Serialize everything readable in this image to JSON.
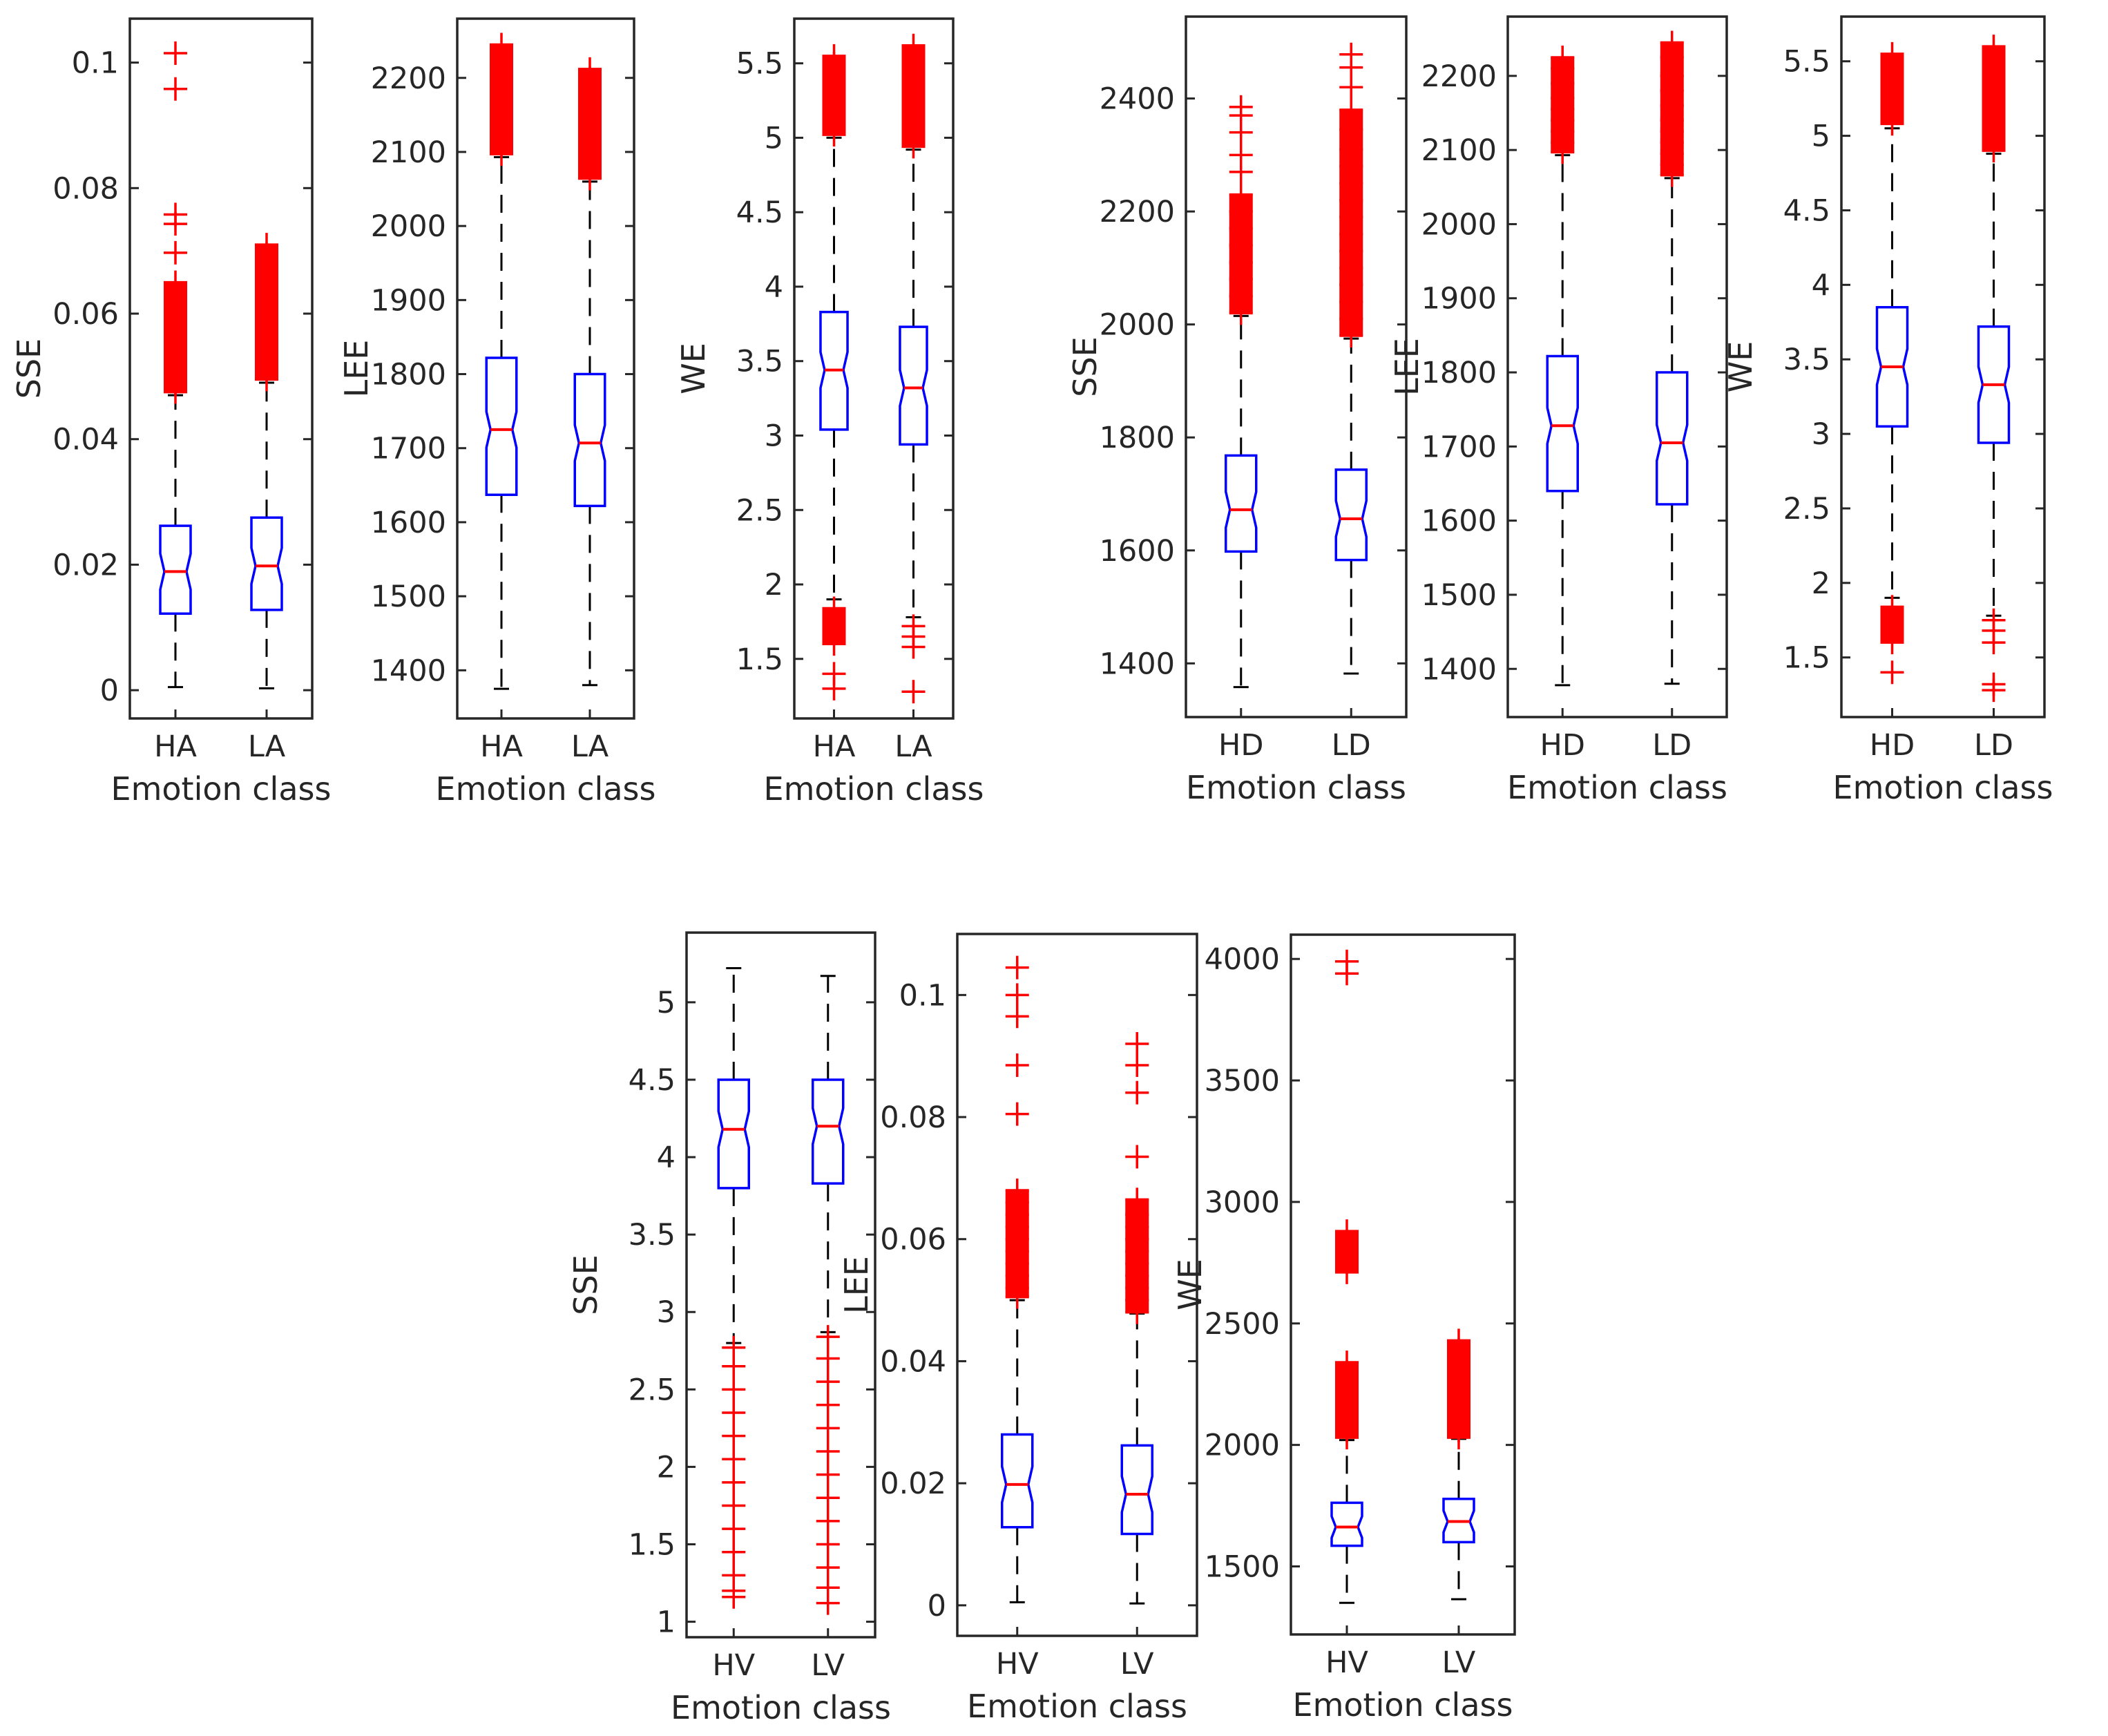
{
  "colors": {
    "box": "#0000ff",
    "median": "#ff0000",
    "outlier": "#ff0000",
    "whisker": "#000000",
    "axis": "#262626"
  },
  "chart_data": [
    {
      "type": "box",
      "ylabel": "SSE",
      "xlabel": "Emotion class",
      "categories": [
        "HA",
        "LA"
      ],
      "yticks": [
        0,
        0.02,
        0.04,
        0.06,
        0.08,
        0.1
      ],
      "ytick_labels": [
        "0",
        "0.02",
        "0.04",
        "0.06",
        "0.08",
        "0.1"
      ],
      "ylim": [
        -0.0045,
        0.107
      ],
      "boxes": [
        {
          "min": 0.0005,
          "q1": 0.0122,
          "median": 0.0189,
          "q3": 0.0262,
          "max": 0.047,
          "outliers_high": [
            0.0475,
            0.049,
            0.051,
            0.053,
            0.055,
            0.057,
            0.059,
            0.061,
            0.063,
            0.065,
            0.0697,
            0.0743,
            0.0758,
            0.0958,
            0.1015
          ],
          "outliers_low": []
        },
        {
          "min": 0.0003,
          "q1": 0.0128,
          "median": 0.0198,
          "q3": 0.0275,
          "max": 0.049,
          "outliers_high": [
            0.0495,
            0.051,
            0.053,
            0.055,
            0.057,
            0.059,
            0.061,
            0.063,
            0.065,
            0.0675,
            0.0695,
            0.071
          ],
          "outliers_low": []
        }
      ]
    },
    {
      "type": "box",
      "ylabel": "LEE",
      "xlabel": "Emotion class",
      "categories": [
        "HA",
        "LA"
      ],
      "yticks": [
        1400,
        1500,
        1600,
        1700,
        1800,
        1900,
        2000,
        2100,
        2200
      ],
      "ytick_labels": [
        "1400",
        "1500",
        "1600",
        "1700",
        "1800",
        "1900",
        "2000",
        "2100",
        "2200"
      ],
      "ylim": [
        1335,
        2280
      ],
      "boxes": [
        {
          "min": 1375,
          "q1": 1637,
          "median": 1725,
          "q3": 1822,
          "max": 2093,
          "outliers_high": [
            2097,
            2110,
            2125,
            2140,
            2155,
            2170,
            2185,
            2200,
            2222,
            2245
          ],
          "outliers_low": []
        },
        {
          "min": 1380,
          "q1": 1622,
          "median": 1707,
          "q3": 1800,
          "max": 2060,
          "outliers_high": [
            2064,
            2080,
            2095,
            2110,
            2125,
            2140,
            2155,
            2170,
            2185,
            2200,
            2212
          ],
          "outliers_low": []
        }
      ]
    },
    {
      "type": "box",
      "ylabel": "WE",
      "xlabel": "Emotion class",
      "categories": [
        "HA",
        "LA"
      ],
      "yticks": [
        1.5,
        2,
        2.5,
        3,
        3.5,
        4,
        4.5,
        5,
        5.5
      ],
      "ytick_labels": [
        "1.5",
        "2",
        "2.5",
        "3",
        "3.5",
        "4",
        "4.5",
        "5",
        "5.5"
      ],
      "ylim": [
        1.1,
        5.8
      ],
      "boxes": [
        {
          "min": 1.9,
          "q1": 3.04,
          "median": 3.44,
          "q3": 3.83,
          "max": 5.0,
          "outliers_high": [
            5.02,
            5.1,
            5.2,
            5.3,
            5.4,
            5.5,
            5.55
          ],
          "outliers_low": [
            1.84,
            1.75,
            1.68,
            1.6,
            1.4,
            1.3
          ]
        },
        {
          "min": 1.78,
          "q1": 2.94,
          "median": 3.32,
          "q3": 3.73,
          "max": 4.92,
          "outliers_high": [
            4.94,
            5.05,
            5.15,
            5.25,
            5.35,
            5.45,
            5.55,
            5.62
          ],
          "outliers_low": [
            1.72,
            1.65,
            1.58,
            1.28
          ]
        }
      ]
    },
    {
      "type": "box",
      "ylabel": "SSE",
      "xlabel": "Emotion class",
      "categories": [
        "HD",
        "LD"
      ],
      "yticks": [
        1400,
        1600,
        1800,
        2000,
        2200,
        2400
      ],
      "ytick_labels": [
        "1400",
        "1600",
        "1800",
        "2000",
        "2200",
        "2400"
      ],
      "ylim": [
        1305,
        2545
      ],
      "boxes": [
        {
          "min": 1358,
          "q1": 1598,
          "median": 1672,
          "q3": 1768,
          "max": 2015,
          "outliers_high": [
            2020,
            2050,
            2080,
            2110,
            2140,
            2170,
            2200,
            2230,
            2270,
            2300,
            2340,
            2370,
            2385
          ],
          "outliers_low": []
        },
        {
          "min": 1382,
          "q1": 1583,
          "median": 1656,
          "q3": 1743,
          "max": 1975,
          "outliers_high": [
            1980,
            2010,
            2040,
            2070,
            2100,
            2130,
            2160,
            2190,
            2220,
            2250,
            2280,
            2310,
            2345,
            2380,
            2420,
            2455,
            2478
          ],
          "outliers_low": []
        }
      ]
    },
    {
      "type": "box",
      "ylabel": "LEE",
      "xlabel": "Emotion class",
      "categories": [
        "HD",
        "LD"
      ],
      "yticks": [
        1400,
        1500,
        1600,
        1700,
        1800,
        1900,
        2000,
        2100,
        2200
      ],
      "ytick_labels": [
        "1400",
        "1500",
        "1600",
        "1700",
        "1800",
        "1900",
        "2000",
        "2100",
        "2200"
      ],
      "ylim": [
        1335,
        2280
      ],
      "boxes": [
        {
          "min": 1378,
          "q1": 1640,
          "median": 1728,
          "q3": 1822,
          "max": 2093,
          "outliers_high": [
            2097,
            2110,
            2125,
            2140,
            2155,
            2170,
            2190,
            2210,
            2225
          ],
          "outliers_low": []
        },
        {
          "min": 1380,
          "q1": 1622,
          "median": 1705,
          "q3": 1800,
          "max": 2062,
          "outliers_high": [
            2066,
            2080,
            2095,
            2110,
            2125,
            2140,
            2160,
            2180,
            2200,
            2225,
            2245
          ],
          "outliers_low": []
        }
      ]
    },
    {
      "type": "box",
      "ylabel": "WE",
      "xlabel": "Emotion class",
      "categories": [
        "HD",
        "LD"
      ],
      "yticks": [
        1.5,
        2,
        2.5,
        3,
        3.5,
        4,
        4.5,
        5,
        5.5
      ],
      "ytick_labels": [
        "1.5",
        "2",
        "2.5",
        "3",
        "3.5",
        "4",
        "4.5",
        "5",
        "5.5"
      ],
      "ylim": [
        1.1,
        5.8
      ],
      "boxes": [
        {
          "min": 1.9,
          "q1": 3.05,
          "median": 3.45,
          "q3": 3.85,
          "max": 5.05,
          "outliers_high": [
            5.08,
            5.15,
            5.25,
            5.35,
            5.45,
            5.55
          ],
          "outliers_low": [
            1.84,
            1.75,
            1.68,
            1.6,
            1.4
          ]
        },
        {
          "min": 1.78,
          "q1": 2.94,
          "median": 3.33,
          "q3": 3.72,
          "max": 4.88,
          "outliers_high": [
            4.9,
            5.0,
            5.1,
            5.2,
            5.3,
            5.4,
            5.5,
            5.6
          ],
          "outliers_low": [
            1.75,
            1.68,
            1.6,
            1.32,
            1.28
          ]
        }
      ]
    },
    {
      "type": "box",
      "ylabel": "SSE",
      "xlabel": "Emotion class",
      "categories": [
        "HV",
        "LV"
      ],
      "yticks": [
        1,
        1.5,
        2,
        2.5,
        3,
        3.5,
        4,
        4.5,
        5
      ],
      "ytick_labels": [
        "1",
        "1.5",
        "2",
        "2.5",
        "3",
        "3.5",
        "4",
        "4.5",
        "5"
      ],
      "ylim": [
        0.9,
        5.45
      ],
      "boxes": [
        {
          "min": 2.8,
          "q1": 3.8,
          "median": 4.18,
          "q3": 4.5,
          "max": 5.22,
          "outliers_high": [],
          "outliers_low": [
            2.77,
            2.65,
            2.5,
            2.35,
            2.2,
            2.05,
            1.9,
            1.75,
            1.6,
            1.45,
            1.3,
            1.2,
            1.16
          ]
        },
        {
          "min": 2.87,
          "q1": 3.83,
          "median": 4.2,
          "q3": 4.5,
          "max": 5.17,
          "outliers_high": [],
          "outliers_low": [
            2.84,
            2.7,
            2.55,
            2.4,
            2.25,
            2.1,
            1.95,
            1.8,
            1.65,
            1.5,
            1.35,
            1.22,
            1.12
          ]
        }
      ]
    },
    {
      "type": "box",
      "ylabel": "LEE",
      "xlabel": "Emotion class",
      "categories": [
        "HV",
        "LV"
      ],
      "yticks": [
        0,
        0.02,
        0.04,
        0.06,
        0.08,
        0.1
      ],
      "ytick_labels": [
        "0",
        "0.02",
        "0.04",
        "0.06",
        "0.08",
        "0.1"
      ],
      "ylim": [
        -0.005,
        0.11
      ],
      "boxes": [
        {
          "min": 0.0005,
          "q1": 0.0128,
          "median": 0.0198,
          "q3": 0.028,
          "max": 0.05,
          "outliers_high": [
            0.0505,
            0.052,
            0.054,
            0.056,
            0.058,
            0.06,
            0.062,
            0.064,
            0.066,
            0.068,
            0.0805,
            0.0885,
            0.0965,
            0.1,
            0.1045
          ],
          "outliers_low": []
        },
        {
          "min": 0.0003,
          "q1": 0.0117,
          "median": 0.0182,
          "q3": 0.0262,
          "max": 0.0478,
          "outliers_high": [
            0.048,
            0.05,
            0.052,
            0.054,
            0.056,
            0.058,
            0.06,
            0.062,
            0.064,
            0.0665,
            0.0735,
            0.084,
            0.0885,
            0.092
          ],
          "outliers_low": []
        }
      ]
    },
    {
      "type": "box",
      "ylabel": "WE",
      "xlabel": "Emotion class",
      "categories": [
        "HV",
        "LV"
      ],
      "yticks": [
        1500,
        2000,
        2500,
        3000,
        3500,
        4000
      ],
      "ytick_labels": [
        "1500",
        "2000",
        "2500",
        "3000",
        "3500",
        "4000"
      ],
      "ylim": [
        1220,
        4100
      ],
      "boxes": [
        {
          "min": 1350,
          "q1": 1585,
          "median": 1662,
          "q3": 1762,
          "max": 2020,
          "outliers_high": [
            2030,
            2060,
            2090,
            2120,
            2150,
            2200,
            2250,
            2300,
            2340,
            2710,
            2760,
            2800,
            2880,
            3940,
            3990
          ],
          "outliers_low": []
        },
        {
          "min": 1365,
          "q1": 1600,
          "median": 1685,
          "q3": 1778,
          "max": 2025,
          "outliers_high": [
            2030,
            2060,
            2090,
            2120,
            2150,
            2190,
            2230,
            2270,
            2310,
            2350,
            2390,
            2430
          ],
          "outliers_low": []
        }
      ]
    }
  ]
}
